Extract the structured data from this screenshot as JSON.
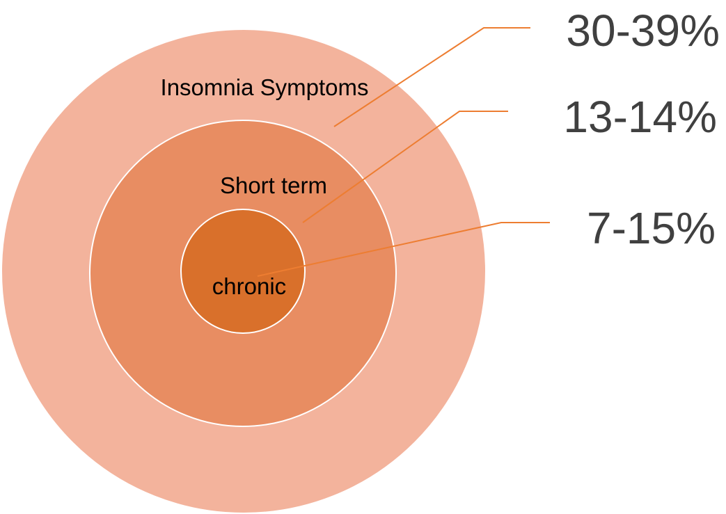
{
  "nodes": [
    {
      "label": "Insomnia Symptoms",
      "value": "30-39%"
    },
    {
      "label": "Short term",
      "value": "13-14%"
    },
    {
      "label": "chronic",
      "value": "7-15%"
    }
  ]
}
